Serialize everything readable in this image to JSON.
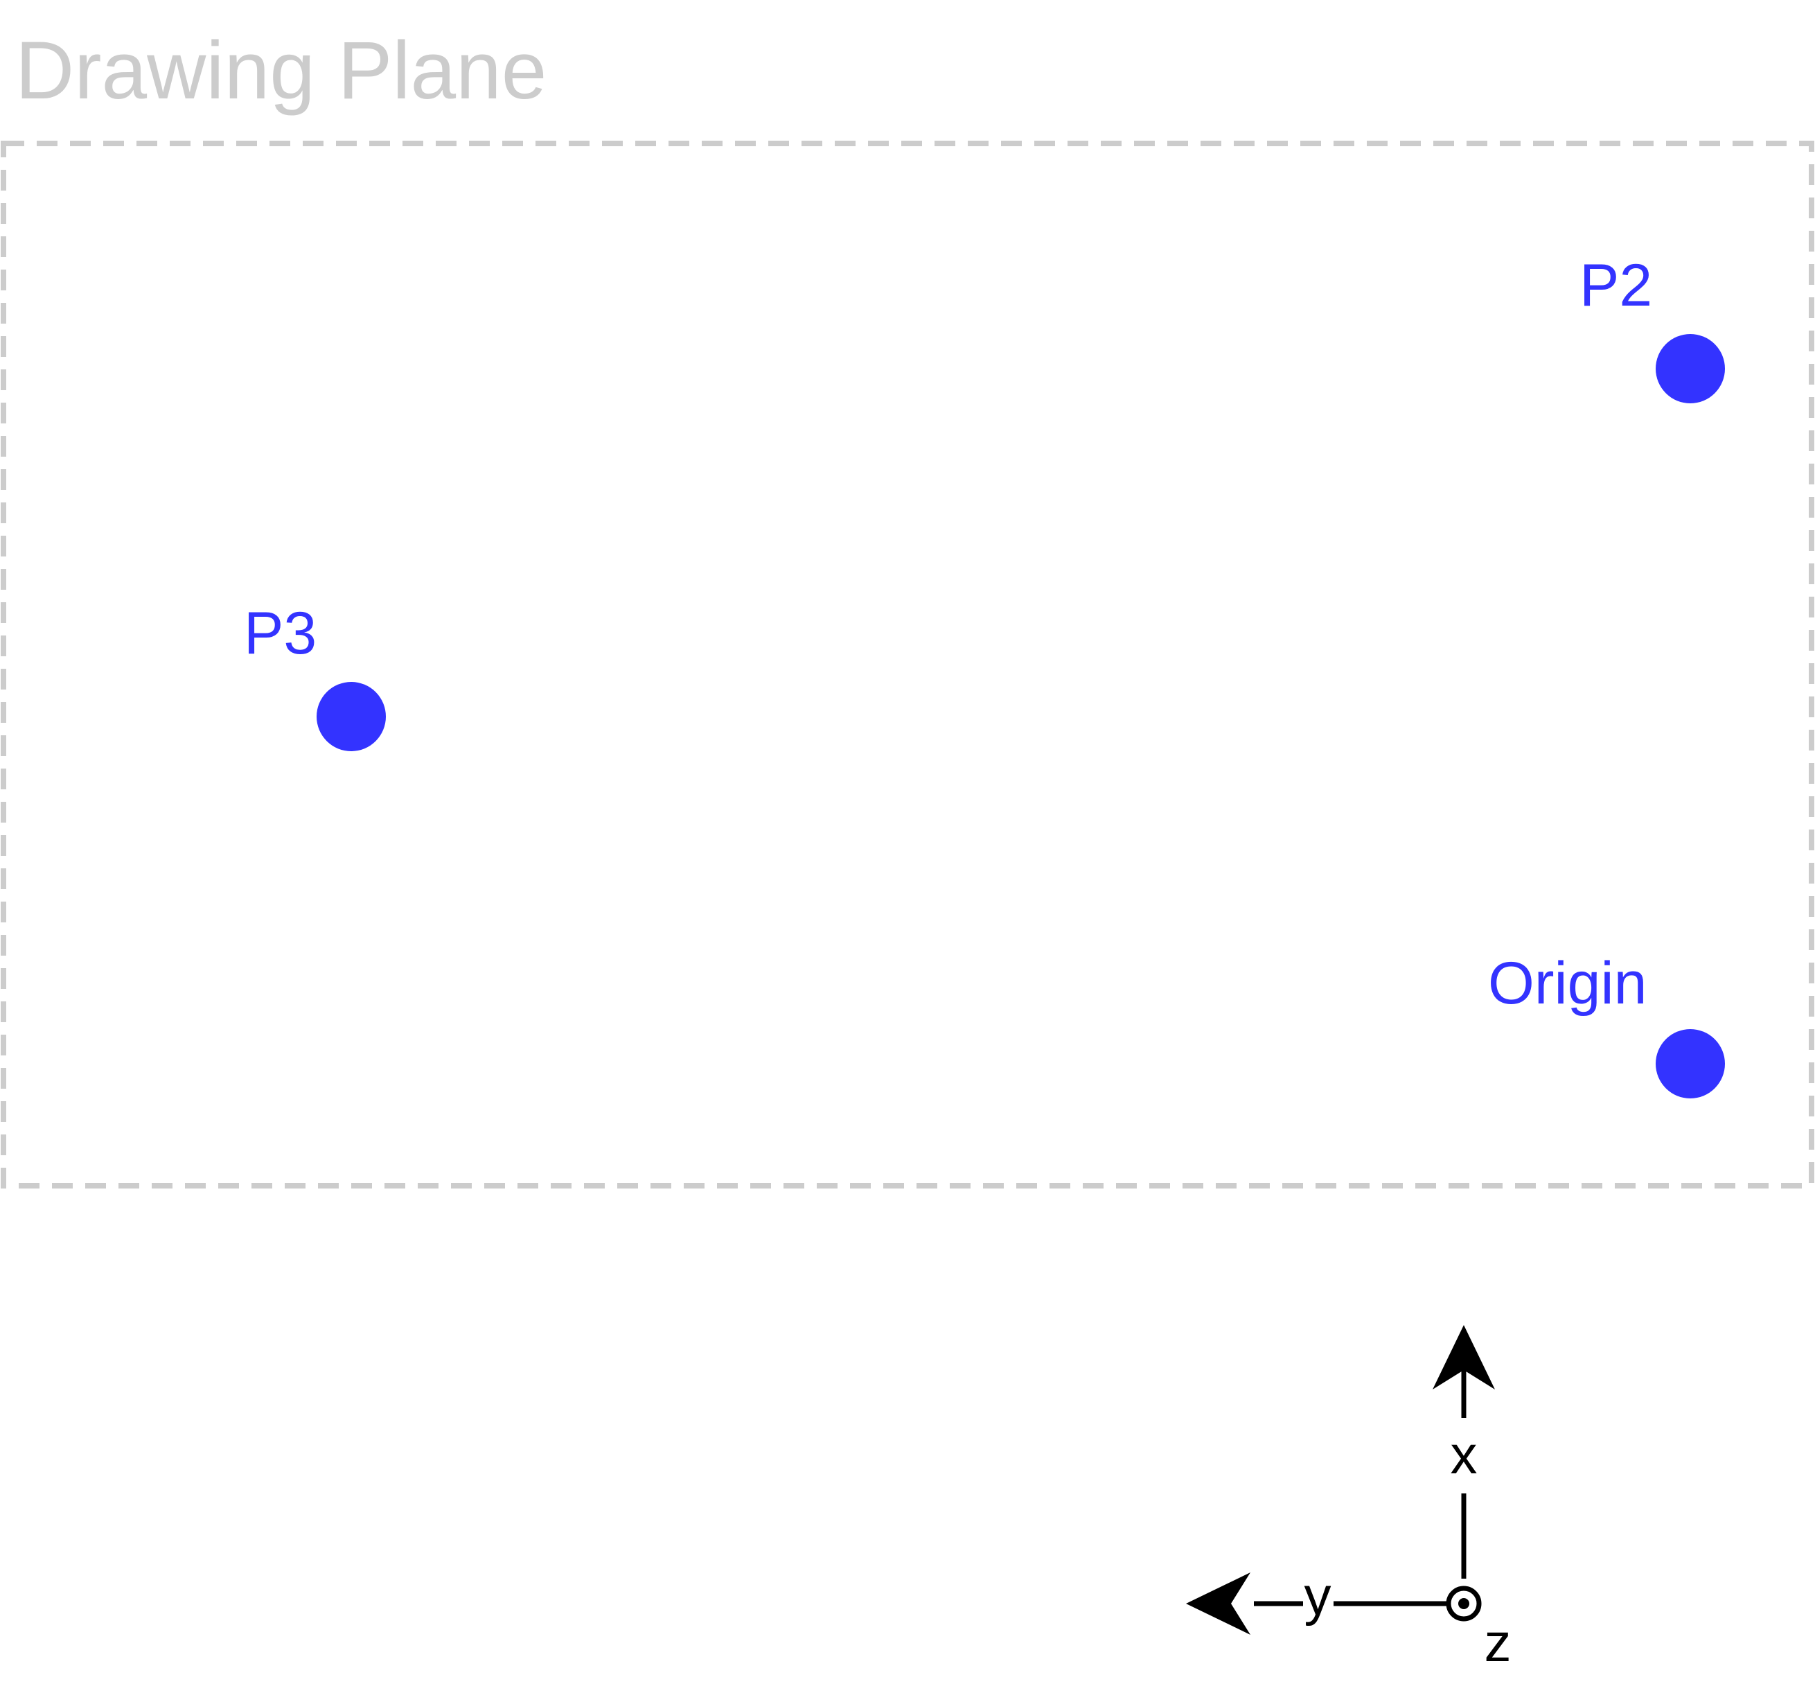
{
  "drawing_plane": {
    "title": "Drawing Plane",
    "title_color": "#cccccc",
    "border_color": "#cccccc"
  },
  "points": [
    {
      "id": "p2",
      "label": "P2",
      "color": "#3333ff"
    },
    {
      "id": "p3",
      "label": "P3",
      "color": "#3333ff"
    },
    {
      "id": "origin",
      "label": "Origin",
      "color": "#3333ff"
    }
  ],
  "axes": {
    "color": "#000000",
    "x_label": "x",
    "y_label": "y",
    "z_label": "z",
    "z_symbol": "out-of-page-circle-dot-icon"
  }
}
